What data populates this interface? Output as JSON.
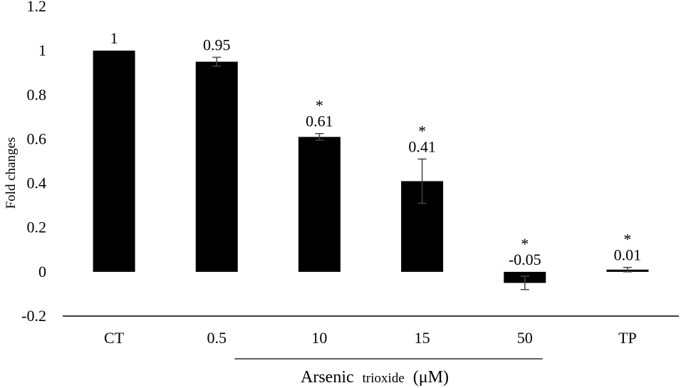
{
  "chart_data": {
    "type": "bar",
    "categories": [
      "CT",
      "0.5",
      "10",
      "15",
      "50",
      "TP"
    ],
    "values": [
      1.0,
      0.95,
      0.61,
      0.41,
      -0.05,
      0.01
    ],
    "errors": [
      0.0,
      0.02,
      0.015,
      0.1,
      0.03,
      0.01
    ],
    "data_labels": [
      "1",
      "0.95",
      "0.61",
      "0.41",
      "-0.05",
      "0.01"
    ],
    "significant": [
      false,
      false,
      true,
      true,
      true,
      true
    ],
    "significance_marker": "*",
    "ylabel": "Fold changes",
    "ylim": [
      -0.2,
      1.2
    ],
    "yticks": [
      -0.2,
      0,
      0.2,
      0.4,
      0.6,
      0.8,
      1,
      1.2
    ],
    "ytick_labels": [
      "-0.2",
      "0",
      "0.2",
      "0.4",
      "0.6",
      "0.8",
      "1",
      "1.2"
    ],
    "grid": false,
    "bar_color": "#000000",
    "group_label": {
      "main": "Arsenic",
      "small": "trioxide",
      "unit": "(μM)",
      "categories": [
        "0.5",
        "10",
        "15",
        "50"
      ]
    }
  }
}
